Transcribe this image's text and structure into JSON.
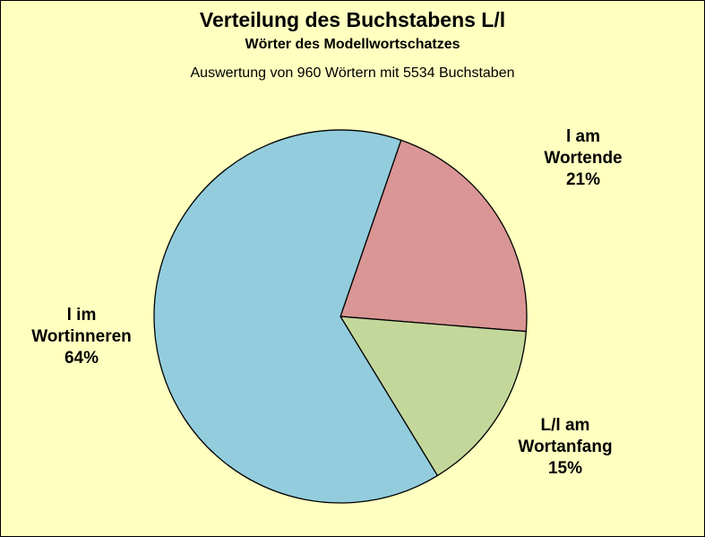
{
  "chart_data": {
    "type": "pie",
    "title": "Verteilung des Buchstabens L/l",
    "subtitle": "Wörter des Modellwortschatzes",
    "note": "Auswertung von 960 Wörtern mit 5534 Buchstaben",
    "slices": [
      {
        "label_lines": [
          "l am",
          "Wortende"
        ],
        "percent_label": "21%",
        "value": 21,
        "color": "#D99694"
      },
      {
        "label_lines": [
          "L/l am",
          "Wortanfang"
        ],
        "percent_label": "15%",
        "value": 15,
        "color": "#C4D79B"
      },
      {
        "label_lines": [
          "l im",
          "Wortinneren"
        ],
        "percent_label": "64%",
        "value": 64,
        "color": "#93CDDD"
      }
    ]
  },
  "colors": {
    "background": "#FFFFC0",
    "border": "#000000"
  }
}
